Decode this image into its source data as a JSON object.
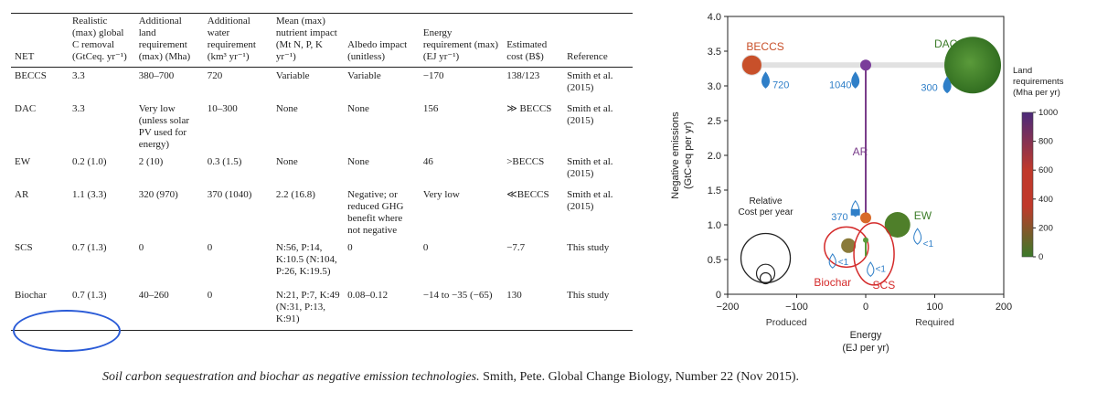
{
  "table": {
    "headers": [
      "NET",
      "Realistic (max) global C removal (GtCeq. yr⁻¹)",
      "Additional land requirement (max) (Mha)",
      "Additional water requirement (km³ yr⁻¹)",
      "Mean (max) nutrient impact (Mt N, P, K yr⁻¹)",
      "Albedo impact (unitless)",
      "Energy requirement (max) (EJ yr⁻¹)",
      "Estimated cost (B$)",
      "Reference"
    ],
    "rows": [
      [
        "BECCS",
        "3.3",
        "380–700",
        "720",
        "Variable",
        "Variable",
        "−170",
        "138/123",
        "Smith et al. (2015)"
      ],
      [
        "DAC",
        "3.3",
        "Very low (unless solar PV used for energy)",
        "10–300",
        "None",
        "None",
        "156",
        "≫ BECCS",
        "Smith et al. (2015)"
      ],
      [
        "EW",
        "0.2 (1.0)",
        "2 (10)",
        "0.3 (1.5)",
        "None",
        "None",
        "46",
        ">BECCS",
        "Smith et al. (2015)"
      ],
      [
        "AR",
        "1.1 (3.3)",
        "320 (970)",
        "370 (1040)",
        "2.2 (16.8)",
        "Negative; or reduced GHG benefit where not negative",
        "Very low",
        "≪BECCS",
        "Smith et al. (2015)"
      ],
      [
        "SCS",
        "0.7 (1.3)",
        "0",
        "0",
        "N:56, P:14, K:10.5 (N:104, P:26, K:19.5)",
        "0",
        "0",
        "−7.7",
        "This study"
      ],
      [
        "Biochar",
        "0.7 (1.3)",
        "40–260",
        "0",
        "N:21, P:7, K:49 (N:31, P:13, K:91)",
        "0.08–0.12",
        "−14 to −35 (−65)",
        "130",
        "This study"
      ]
    ]
  },
  "caption": {
    "title": "Soil carbon sequestration and biochar as negative emission technologies.",
    "rest": " Smith, Pete. Global Change Biology, Number 22 (Nov 2015)."
  },
  "chart_data": {
    "type": "scatter",
    "xlabel": "Energy",
    "xlabel_unit": "(EJ per yr)",
    "ylabel": "Negative emissions",
    "ylabel_unit": "(GtC-eq per yr)",
    "xlim": [
      -200,
      200
    ],
    "ylim": [
      0,
      4.0
    ],
    "xticks": [
      "−200",
      "−100",
      "0",
      "100",
      "200"
    ],
    "yticks": [
      "0",
      "0.5",
      "1.0",
      "1.5",
      "2.0",
      "2.5",
      "3.0",
      "3.5",
      "4.0"
    ],
    "x_side_labels": [
      "Produced",
      "Required"
    ],
    "points": [
      {
        "name": "BECCS",
        "x": -165,
        "y": 3.3,
        "land": 550,
        "color": "#c8502a",
        "water": "720"
      },
      {
        "name": "DAC",
        "x": 155,
        "y": 3.3,
        "land": 0,
        "color": "#3d7d2a",
        "water": "300"
      },
      {
        "name": "AR",
        "x": 0,
        "y": 1.1,
        "land": 320,
        "color": "#d86a2a",
        "water": "370"
      },
      {
        "name": "AR (max)",
        "x": 0,
        "y": 3.3,
        "land": 970,
        "color": "#7a3d9a",
        "water": "1040"
      },
      {
        "name": "EW",
        "x": 46,
        "y": 1.0,
        "land": 2,
        "color": "#4f7f2a",
        "water": "<1"
      },
      {
        "name": "Biochar",
        "x": -25,
        "y": 0.7,
        "land": 150,
        "color": "#8a7a3a",
        "water": "<1"
      },
      {
        "name": "SCS",
        "x": 0,
        "y": 0.7,
        "land": 0,
        "color": "#5a9a3a",
        "water": "<1"
      }
    ],
    "cost_legend": {
      "line1": "Relative",
      "line2": "Cost per year"
    },
    "colorbar": {
      "title_lines": [
        "Land",
        "requirements",
        "(Mha per yr)"
      ],
      "ticks": [
        "0",
        "200",
        "400",
        "600",
        "800",
        "1000"
      ],
      "range": [
        0,
        1000
      ]
    }
  }
}
